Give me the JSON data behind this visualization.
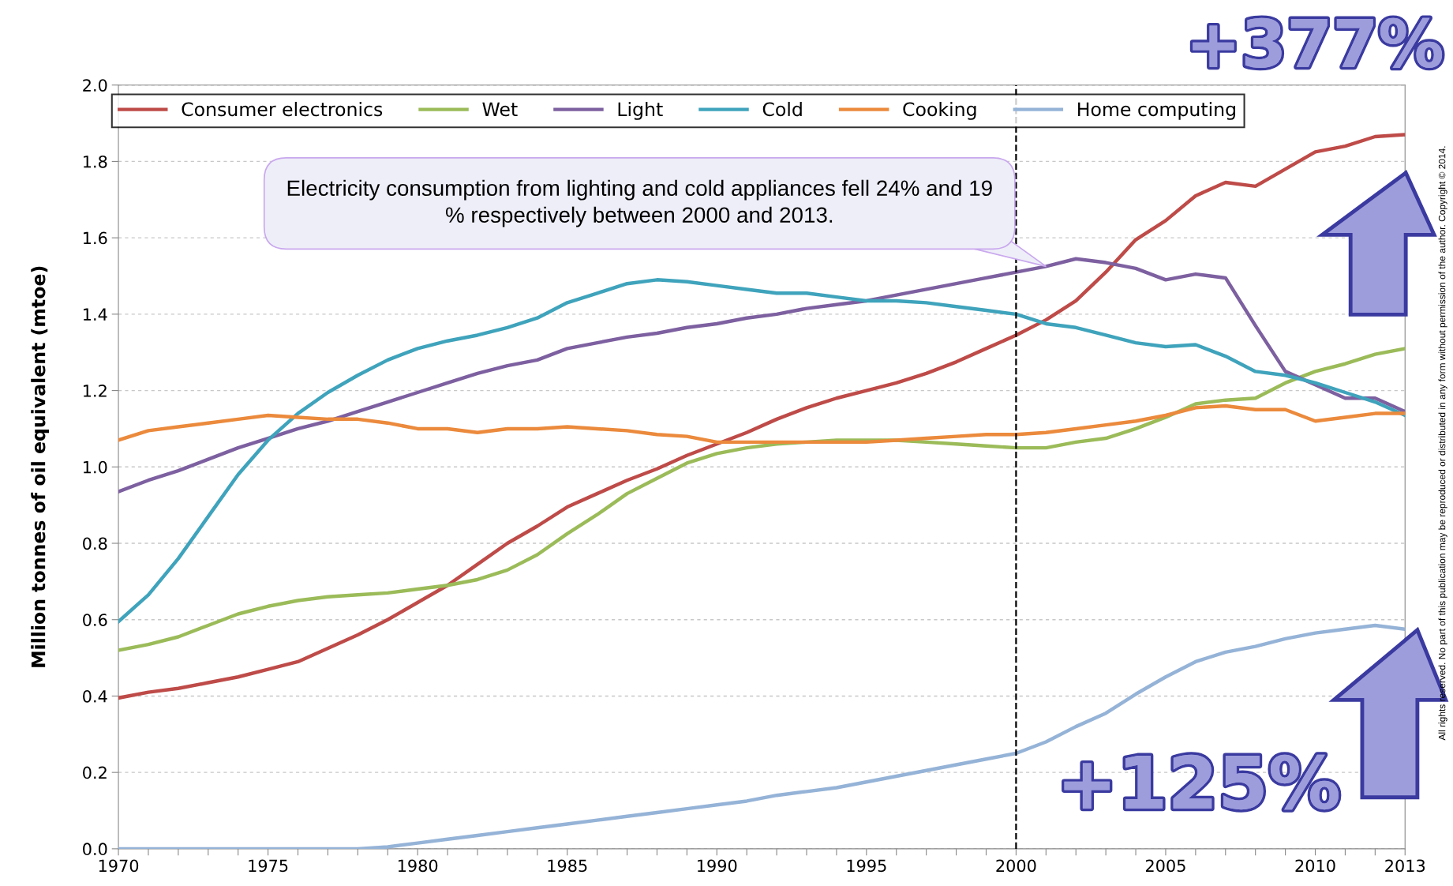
{
  "chart_data": {
    "type": "line",
    "ylabel": "Million tonnes of oil equivalent (mtoe)",
    "x": [
      1970,
      1971,
      1972,
      1973,
      1974,
      1975,
      1976,
      1977,
      1978,
      1979,
      1980,
      1981,
      1982,
      1983,
      1984,
      1985,
      1986,
      1987,
      1988,
      1989,
      1990,
      1991,
      1992,
      1993,
      1994,
      1995,
      1996,
      1997,
      1998,
      1999,
      2000,
      2001,
      2002,
      2003,
      2004,
      2005,
      2006,
      2007,
      2008,
      2009,
      2010,
      2011,
      2012,
      2013
    ],
    "series": [
      {
        "name": "Consumer electronics",
        "color": "#be4b48",
        "values": [
          0.395,
          0.41,
          0.42,
          0.435,
          0.45,
          0.47,
          0.49,
          0.525,
          0.56,
          0.6,
          0.645,
          0.69,
          0.745,
          0.8,
          0.845,
          0.895,
          0.93,
          0.965,
          0.995,
          1.03,
          1.06,
          1.09,
          1.125,
          1.155,
          1.18,
          1.2,
          1.22,
          1.245,
          1.275,
          1.31,
          1.345,
          1.385,
          1.435,
          1.51,
          1.595,
          1.645,
          1.71,
          1.745,
          1.735,
          1.78,
          1.825,
          1.84,
          1.865,
          1.87
        ]
      },
      {
        "name": "Wet",
        "color": "#9bbb59",
        "values": [
          0.52,
          0.535,
          0.555,
          0.585,
          0.615,
          0.635,
          0.65,
          0.66,
          0.665,
          0.67,
          0.68,
          0.69,
          0.705,
          0.73,
          0.77,
          0.825,
          0.875,
          0.93,
          0.97,
          1.01,
          1.035,
          1.05,
          1.06,
          1.065,
          1.07,
          1.07,
          1.07,
          1.065,
          1.06,
          1.055,
          1.05,
          1.05,
          1.065,
          1.075,
          1.1,
          1.13,
          1.165,
          1.175,
          1.18,
          1.22,
          1.25,
          1.27,
          1.295,
          1.31
        ]
      },
      {
        "name": "Light",
        "color": "#7d60a0",
        "values": [
          0.935,
          0.965,
          0.99,
          1.02,
          1.05,
          1.075,
          1.1,
          1.12,
          1.145,
          1.17,
          1.195,
          1.22,
          1.245,
          1.265,
          1.28,
          1.31,
          1.325,
          1.34,
          1.35,
          1.365,
          1.375,
          1.39,
          1.4,
          1.415,
          1.425,
          1.435,
          1.45,
          1.465,
          1.48,
          1.495,
          1.51,
          1.525,
          1.545,
          1.535,
          1.52,
          1.49,
          1.505,
          1.495,
          1.37,
          1.25,
          1.215,
          1.18,
          1.18,
          1.145
        ]
      },
      {
        "name": "Cold",
        "color": "#3fa3bc",
        "values": [
          0.595,
          0.665,
          0.76,
          0.87,
          0.98,
          1.07,
          1.14,
          1.195,
          1.24,
          1.28,
          1.31,
          1.33,
          1.345,
          1.365,
          1.39,
          1.43,
          1.455,
          1.48,
          1.49,
          1.485,
          1.475,
          1.465,
          1.455,
          1.455,
          1.445,
          1.435,
          1.435,
          1.43,
          1.42,
          1.41,
          1.4,
          1.375,
          1.365,
          1.345,
          1.325,
          1.315,
          1.32,
          1.29,
          1.25,
          1.24,
          1.22,
          1.195,
          1.17,
          1.135
        ]
      },
      {
        "name": "Cooking",
        "color": "#eb8a3c",
        "values": [
          1.07,
          1.095,
          1.105,
          1.115,
          1.125,
          1.135,
          1.13,
          1.125,
          1.125,
          1.115,
          1.1,
          1.1,
          1.09,
          1.1,
          1.1,
          1.105,
          1.1,
          1.095,
          1.085,
          1.08,
          1.065,
          1.065,
          1.065,
          1.065,
          1.065,
          1.065,
          1.07,
          1.075,
          1.08,
          1.085,
          1.085,
          1.09,
          1.1,
          1.11,
          1.12,
          1.135,
          1.155,
          1.16,
          1.15,
          1.15,
          1.12,
          1.13,
          1.14,
          1.14
        ]
      },
      {
        "name": "Home computing",
        "color": "#95b3d7",
        "values": [
          0,
          0,
          0,
          0,
          0,
          0,
          0,
          0,
          0,
          0.005,
          0.015,
          0.025,
          0.035,
          0.045,
          0.055,
          0.065,
          0.075,
          0.085,
          0.095,
          0.105,
          0.115,
          0.125,
          0.14,
          0.15,
          0.16,
          0.175,
          0.19,
          0.205,
          0.22,
          0.235,
          0.25,
          0.28,
          0.32,
          0.355,
          0.405,
          0.45,
          0.49,
          0.515,
          0.53,
          0.55,
          0.565,
          0.575,
          0.585,
          0.575
        ]
      }
    ],
    "xlim": [
      1970,
      2013
    ],
    "xticks": [
      1970,
      {
        "value": 1971,
        "label": null
      },
      {
        "value": 1972,
        "label": null
      },
      {
        "value": 1973,
        "label": null
      },
      {
        "value": 1974,
        "label": null
      },
      1975,
      {
        "value": 1976,
        "label": null
      },
      {
        "value": 1977,
        "label": null
      },
      {
        "value": 1978,
        "label": null
      },
      {
        "value": 1979,
        "label": null
      },
      1980,
      {
        "value": 1981,
        "label": null
      },
      {
        "value": 1982,
        "label": null
      },
      {
        "value": 1983,
        "label": null
      },
      {
        "value": 1984,
        "label": null
      },
      1985,
      {
        "value": 1986,
        "label": null
      },
      {
        "value": 1987,
        "label": null
      },
      {
        "value": 1988,
        "label": null
      },
      {
        "value": 1989,
        "label": null
      },
      1990,
      {
        "value": 1991,
        "label": null
      },
      {
        "value": 1992,
        "label": null
      },
      {
        "value": 1993,
        "label": null
      },
      {
        "value": 1994,
        "label": null
      },
      1995,
      {
        "value": 1996,
        "label": null
      },
      {
        "value": 1997,
        "label": null
      },
      {
        "value": 1998,
        "label": null
      },
      {
        "value": 1999,
        "label": null
      },
      2000,
      {
        "value": 2001,
        "label": null
      },
      {
        "value": 2002,
        "label": null
      },
      {
        "value": 2003,
        "label": null
      },
      {
        "value": 2004,
        "label": null
      },
      2005,
      {
        "value": 2006,
        "label": null
      },
      {
        "value": 2007,
        "label": null
      },
      {
        "value": 2008,
        "label": null
      },
      {
        "value": 2009,
        "label": null
      },
      2010,
      {
        "value": 2011,
        "label": null
      },
      {
        "value": 2012,
        "label": null
      },
      2013
    ],
    "ylim": [
      0,
      2.0
    ],
    "yticks": [
      {
        "value": 0,
        "label": "0.0"
      },
      {
        "value": 0.2,
        "label": "0.2"
      },
      {
        "value": 0.4,
        "label": "0.4"
      },
      {
        "value": 0.6,
        "label": "0.6"
      },
      {
        "value": 0.8,
        "label": "0.8"
      },
      {
        "value": 1.0,
        "label": "1.0"
      },
      {
        "value": 1.2,
        "label": "1.2"
      },
      {
        "value": 1.4,
        "label": "1.4"
      },
      {
        "value": 1.6,
        "label": "1.6"
      },
      {
        "value": 1.8,
        "label": "1.8"
      },
      {
        "value": 2.0,
        "label": "2.0"
      }
    ],
    "ref_lines": [
      {
        "axis": "x",
        "value": 2000,
        "color": "#000000",
        "line_style": "dashed"
      }
    ],
    "annotations": [
      "Electricity consumption from lighting and cold appliances fell 24% and 19 % respectively between 2000 and 2013.",
      "+377%",
      "+125%",
      "All rights reserved. No part of this publication may be reproduced or distributed in any form without permission of the author. Copyright © 2014."
    ],
    "grid": "y",
    "legend": "top",
    "marker": "none",
    "line_style": "solid"
  }
}
